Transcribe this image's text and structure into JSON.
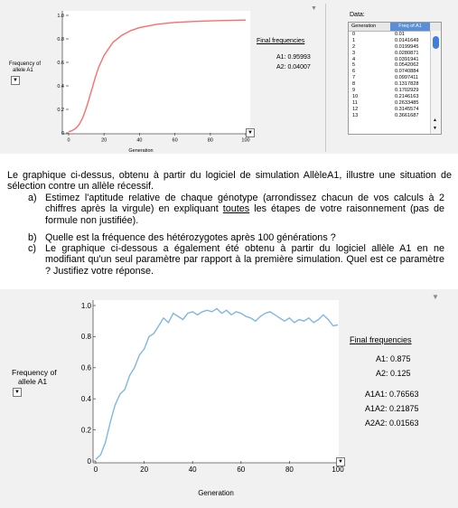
{
  "chart_data": [
    {
      "type": "line",
      "xlabel": "Generation",
      "ylabel": "Frequency of allele A1",
      "xlim": [
        0,
        100
      ],
      "ylim": [
        0,
        1
      ],
      "xticks": [
        "0",
        "20",
        "40",
        "60",
        "80",
        "100"
      ],
      "yticks": [
        "0",
        "0.2",
        "0.4",
        "0.6",
        "0.8",
        "1.0"
      ],
      "series": [
        {
          "color": "#ff6b6b",
          "x": [
            0,
            1,
            2,
            3,
            4,
            5,
            6,
            7,
            8,
            9,
            10,
            11,
            12,
            13,
            15,
            17,
            20,
            25,
            30,
            35,
            40,
            45,
            50,
            60,
            70,
            80,
            90,
            100
          ],
          "y": [
            0.01,
            0.0141649,
            0.0199945,
            0.0280871,
            0.0391941,
            0.0542062,
            0.0740884,
            0.0997411,
            0.1317828,
            0.1702929,
            0.2146163,
            0.2633485,
            0.3145574,
            0.3661687,
            0.47,
            0.56,
            0.66,
            0.77,
            0.83,
            0.87,
            0.895,
            0.91,
            0.925,
            0.94,
            0.948,
            0.953,
            0.957,
            0.95993
          ]
        }
      ]
    },
    {
      "type": "line",
      "xlabel": "Generation",
      "ylabel": "Frequency of allele A1",
      "xlim": [
        0,
        100
      ],
      "ylim": [
        0,
        1
      ],
      "xticks": [
        "0",
        "20",
        "40",
        "60",
        "80",
        "100"
      ],
      "yticks": [
        "0",
        "0.2",
        "0.4",
        "0.6",
        "0.8",
        "1.0"
      ],
      "series": [
        {
          "color": "#7fb7e0",
          "x": [
            0,
            2,
            4,
            6,
            8,
            10,
            12,
            14,
            16,
            18,
            20,
            22,
            24,
            26,
            28,
            30,
            32,
            34,
            36,
            38,
            40,
            42,
            44,
            46,
            48,
            50,
            52,
            54,
            56,
            58,
            60,
            62,
            64,
            66,
            68,
            70,
            72,
            74,
            76,
            78,
            80,
            82,
            84,
            86,
            88,
            90,
            92,
            94,
            96,
            98,
            100
          ],
          "y": [
            0.01,
            0.04,
            0.12,
            0.25,
            0.36,
            0.43,
            0.46,
            0.55,
            0.6,
            0.68,
            0.72,
            0.8,
            0.82,
            0.87,
            0.92,
            0.89,
            0.95,
            0.93,
            0.91,
            0.95,
            0.96,
            0.94,
            0.96,
            0.97,
            0.96,
            0.98,
            0.95,
            0.97,
            0.94,
            0.96,
            0.95,
            0.93,
            0.92,
            0.9,
            0.93,
            0.95,
            0.96,
            0.94,
            0.92,
            0.9,
            0.92,
            0.89,
            0.91,
            0.9,
            0.92,
            0.89,
            0.91,
            0.94,
            0.91,
            0.87,
            0.875
          ]
        }
      ]
    }
  ],
  "chart1": {
    "final_title": "Final frequencies",
    "a1": "A1: 0.95993",
    "a2": "A2: 0.04007",
    "ylabel1": "Frequency of",
    "ylabel2": "allele A1",
    "xlabel": "Generation"
  },
  "table": {
    "title": "Data:",
    "col1": "Generation",
    "col2": "Freq of A1",
    "rows": [
      [
        "0",
        "0.01"
      ],
      [
        "1",
        "0.0141649"
      ],
      [
        "2",
        "0.0199945"
      ],
      [
        "3",
        "0.0280871"
      ],
      [
        "4",
        "0.0391941"
      ],
      [
        "5",
        "0.0542062"
      ],
      [
        "6",
        "0.0740884"
      ],
      [
        "7",
        "0.0997411"
      ],
      [
        "8",
        "0.1317828"
      ],
      [
        "9",
        "0.1702929"
      ],
      [
        "10",
        "0.2146163"
      ],
      [
        "11",
        "0.2633485"
      ],
      [
        "12",
        "0.3145574"
      ],
      [
        "13",
        "0.3661687"
      ]
    ]
  },
  "text": {
    "intro": "Le graphique ci-dessus, obtenu à partir du logiciel de simulation AllèleA1, illustre une situation de sélection contre un allèle récessif.",
    "qa_letter": "a)",
    "qa_part1": "Estimez l'aptitude relative de chaque génotype (arrondissez chacun de vos calculs à 2 chiffres après la virgule) en expliquant ",
    "qa_underlined": "toutes",
    "qa_part2": " les étapes de votre raisonnement (pas de formule non justifiée).",
    "qb_letter": "b)",
    "qb": "Quelle est la fréquence des hétérozygotes après 100 générations ?",
    "qc_letter": "c)",
    "qc": "Le graphique ci-dessous a également été obtenu à partir du logiciel allèle A1 en ne modifiant qu'un seul paramètre par rapport à la première simulation. Quel est ce paramètre ? Justifiez votre réponse."
  },
  "chart2": {
    "final_title": "Final frequencies",
    "a1": "A1: 0.875",
    "a2": "A2: 0.125",
    "a1a1": "A1A1: 0.76563",
    "a1a2": "A1A2: 0.21875",
    "a2a2": "A2A2: 0.01563",
    "ylabel1": "Frequency of",
    "ylabel2": "allele A1",
    "xlabel": "Generation"
  },
  "icons": {
    "dropdown": "▼",
    "menu_triangle": "▼",
    "scroll_up": "▲",
    "scroll_down": "▼"
  }
}
